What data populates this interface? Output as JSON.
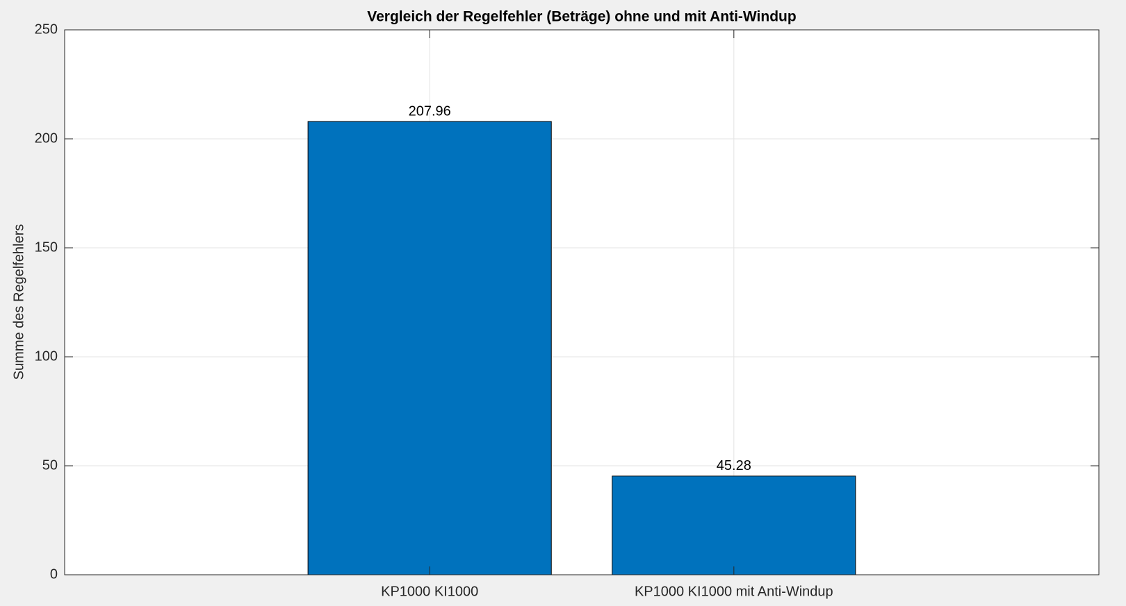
{
  "chart_data": {
    "type": "bar",
    "title": "Vergleich der Regelfehler (Beträge) ohne und mit Anti-Windup",
    "y_label": "Summe des Regelfehlers",
    "categories": [
      "KP1000 KI1000",
      "KP1000 KI1000 mit Anti-Windup"
    ],
    "values": [
      207.96,
      45.28
    ],
    "color": "#0072bd",
    "ylim": [
      0,
      250
    ],
    "yticks": [
      0,
      50,
      100,
      150,
      200,
      250
    ],
    "grid": true,
    "show_value_labels": true
  }
}
